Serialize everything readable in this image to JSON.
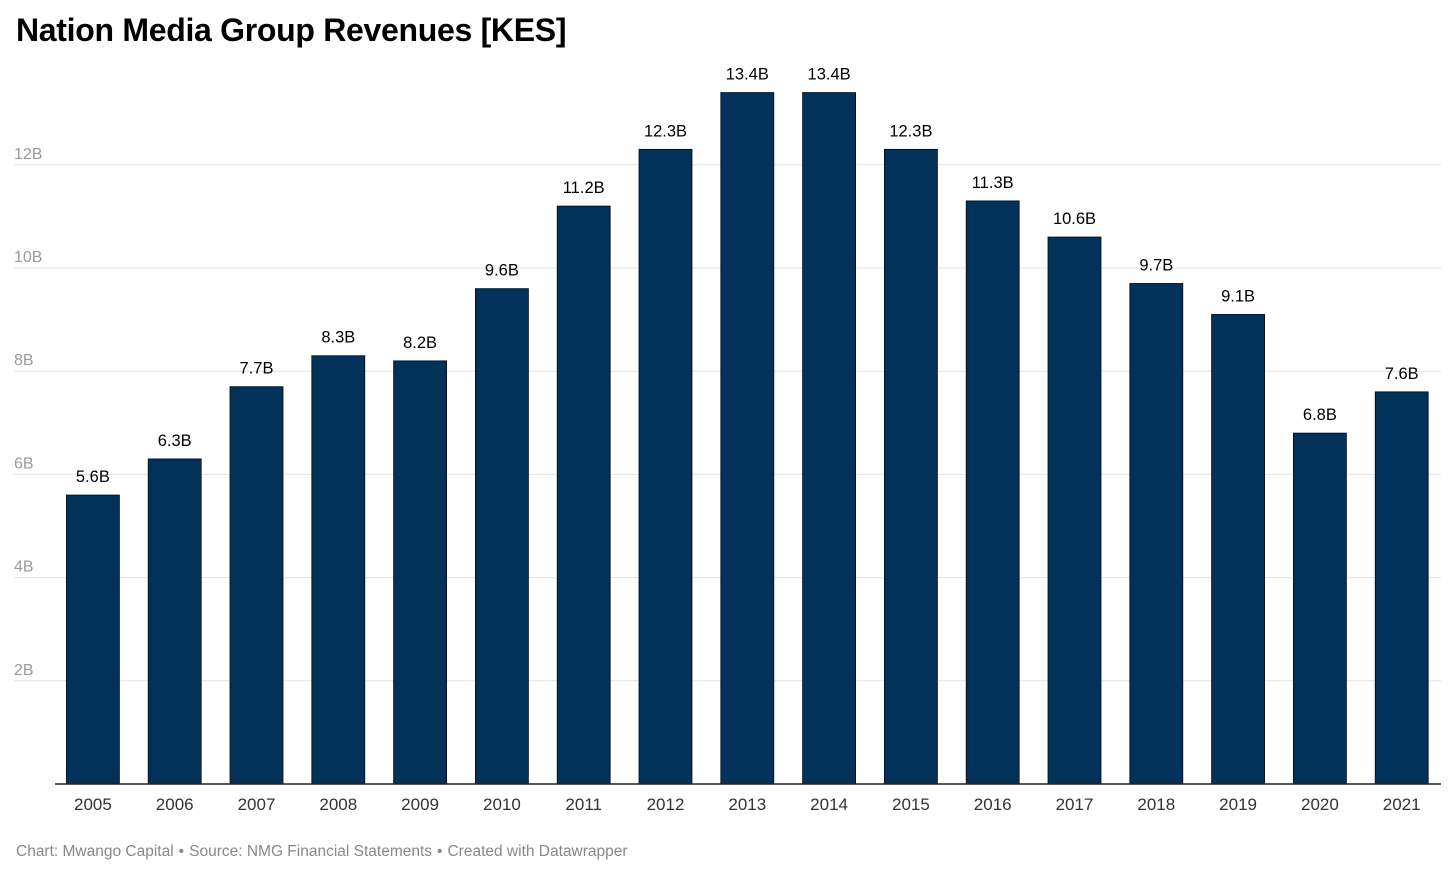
{
  "chart_data": {
    "type": "bar",
    "title": "Nation Media Group Revenues [KES]",
    "categories": [
      "2005",
      "2006",
      "2007",
      "2008",
      "2009",
      "2010",
      "2011",
      "2012",
      "2013",
      "2014",
      "2015",
      "2016",
      "2017",
      "2018",
      "2019",
      "2020",
      "2021"
    ],
    "values": [
      5.6,
      6.3,
      7.7,
      8.3,
      8.2,
      9.6,
      11.2,
      12.3,
      13.4,
      13.4,
      12.3,
      11.3,
      10.6,
      9.7,
      9.1,
      6.8,
      7.6
    ],
    "value_labels": [
      "5.6B",
      "6.3B",
      "7.7B",
      "8.3B",
      "8.2B",
      "9.6B",
      "11.2B",
      "12.3B",
      "13.4B",
      "13.4B",
      "12.3B",
      "11.3B",
      "10.6B",
      "9.7B",
      "9.1B",
      "6.8B",
      "7.6B"
    ],
    "ylim": [
      0,
      14
    ],
    "y_ticks": [
      2,
      4,
      6,
      8,
      10,
      12
    ],
    "y_tick_labels": [
      "2B",
      "4B",
      "6B",
      "8B",
      "10B",
      "12B"
    ],
    "grid": true,
    "bar_color": "#02325a",
    "xlabel": "",
    "ylabel": ""
  },
  "footer": {
    "chart_credit": "Chart: Mwango Capital",
    "source": "Source: NMG Financial Statements",
    "tool": "Created with Datawrapper",
    "separator": "•"
  }
}
